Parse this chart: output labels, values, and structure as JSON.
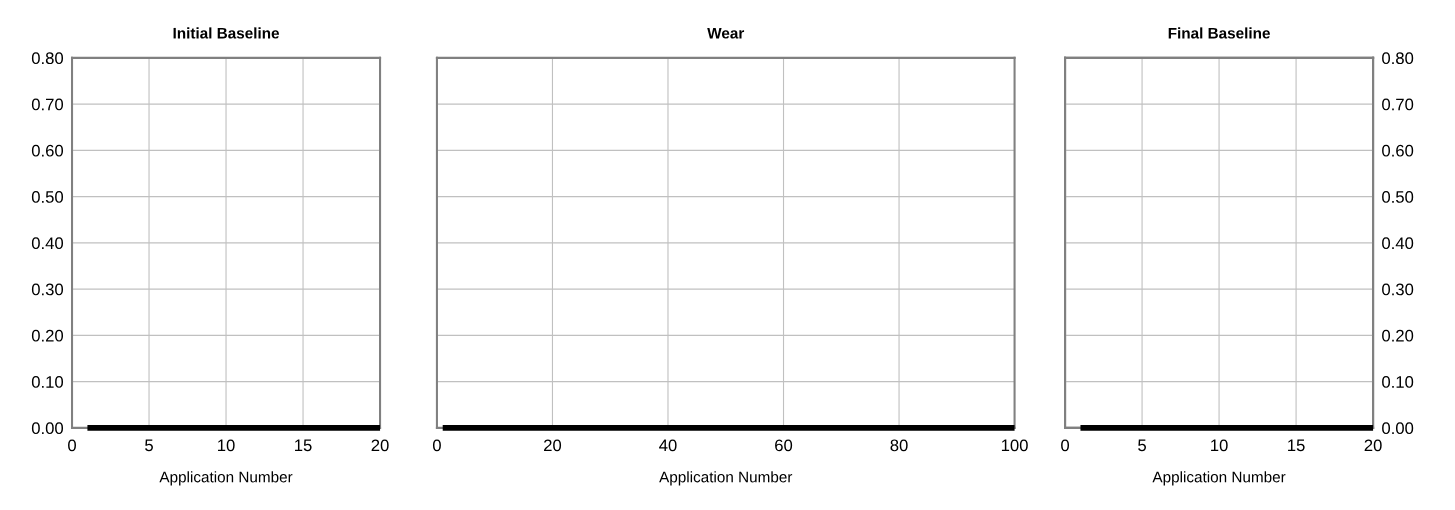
{
  "chart_data": [
    {
      "type": "line",
      "title": "Initial Baseline",
      "xlabel": "Application Number",
      "xlim": [
        0,
        20
      ],
      "xticks": [
        0,
        5,
        10,
        15,
        20
      ],
      "ylim": [
        0,
        0.8
      ],
      "yticks": [
        {
          "value": 0,
          "label": "0.00"
        },
        {
          "value": 0.1,
          "label": "0.10"
        },
        {
          "value": 0.2,
          "label": "0.20"
        },
        {
          "value": 0.3,
          "label": "0.30"
        },
        {
          "value": 0.4,
          "label": "0.40"
        },
        {
          "value": 0.5,
          "label": "0.50"
        },
        {
          "value": 0.6,
          "label": "0.60"
        },
        {
          "value": 0.7,
          "label": "0.70"
        },
        {
          "value": 0.8,
          "label": "0.80"
        }
      ],
      "grid": true,
      "marker": "none",
      "line_style": "solid",
      "series": [
        {
          "color": "#000000",
          "x": [
            1,
            20
          ],
          "values": [
            0,
            0
          ]
        }
      ]
    },
    {
      "type": "line",
      "title": "Wear",
      "xlabel": "Application Number",
      "xlim": [
        0,
        100
      ],
      "xticks": [
        0,
        20,
        40,
        60,
        80,
        100
      ],
      "ylim": [
        0,
        0.8
      ],
      "yticks": [
        {
          "value": 0,
          "label": null
        },
        {
          "value": 0.1,
          "label": null
        },
        {
          "value": 0.2,
          "label": null
        },
        {
          "value": 0.3,
          "label": null
        },
        {
          "value": 0.4,
          "label": null
        },
        {
          "value": 0.5,
          "label": null
        },
        {
          "value": 0.6,
          "label": null
        },
        {
          "value": 0.7,
          "label": null
        },
        {
          "value": 0.8,
          "label": null
        }
      ],
      "tick_labels": "x",
      "grid": true,
      "marker": "none",
      "line_style": "solid",
      "series": [
        {
          "color": "#000000",
          "x": [
            1,
            100
          ],
          "values": [
            0,
            0
          ]
        }
      ]
    },
    {
      "type": "line",
      "title": "Final Baseline",
      "xlabel": "Application Number",
      "xlim": [
        0,
        20
      ],
      "xticks": [
        0,
        5,
        10,
        15,
        20
      ],
      "y2lim": [
        0,
        0.8
      ],
      "y2ticks": [
        {
          "value": 0,
          "label": "0.00"
        },
        {
          "value": 0.1,
          "label": "0.10"
        },
        {
          "value": 0.2,
          "label": "0.20"
        },
        {
          "value": 0.3,
          "label": "0.30"
        },
        {
          "value": 0.4,
          "label": "0.40"
        },
        {
          "value": 0.5,
          "label": "0.50"
        },
        {
          "value": 0.6,
          "label": "0.60"
        },
        {
          "value": 0.7,
          "label": "0.70"
        },
        {
          "value": 0.8,
          "label": "0.80"
        }
      ],
      "grid": true,
      "marker": "none",
      "line_style": "solid",
      "series": [
        {
          "color": "#000000",
          "axis": "y2",
          "x": [
            1,
            20
          ],
          "values": [
            0,
            0
          ]
        }
      ]
    }
  ]
}
